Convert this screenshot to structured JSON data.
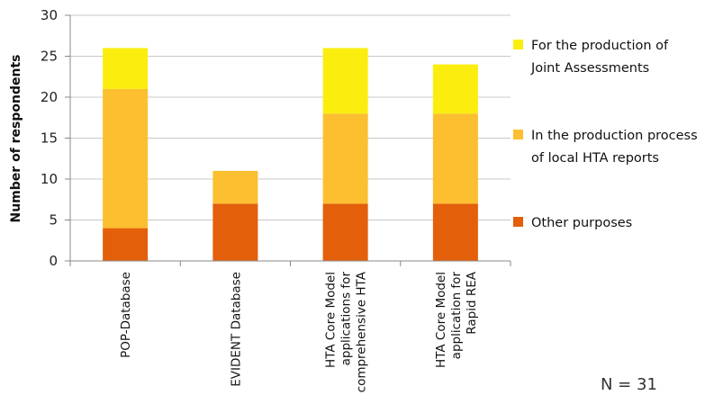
{
  "chart_data": {
    "type": "bar",
    "stacked": true,
    "categories": [
      [
        "POP-Database"
      ],
      [
        "EVIDENT Database"
      ],
      [
        "HTA Core Model",
        "applications for",
        "comprehensive HTA"
      ],
      [
        "HTA Core Model",
        "application for",
        "Rapid REA"
      ]
    ],
    "series": [
      {
        "name": "Other purposes",
        "values": [
          4,
          7,
          7,
          7
        ],
        "color": "#e35f0a"
      },
      {
        "name": "In the production process of local HTA reports",
        "legend_lines": [
          "In the production process",
          "of local HTA reports"
        ],
        "values": [
          17,
          4,
          11,
          11
        ],
        "color": "#fbbf2f"
      },
      {
        "name": "For the production of Joint Assessments",
        "legend_lines": [
          "For the production of",
          "Joint Assessments"
        ],
        "values": [
          5,
          0,
          8,
          6
        ],
        "color": "#fbee0e"
      }
    ],
    "ylabel": "Number of respondents",
    "ylim": [
      0,
      30
    ],
    "yticks": [
      0,
      5,
      10,
      15,
      20,
      25,
      30
    ],
    "grid": true,
    "legend_position": "right",
    "annotation": "N = 31"
  }
}
